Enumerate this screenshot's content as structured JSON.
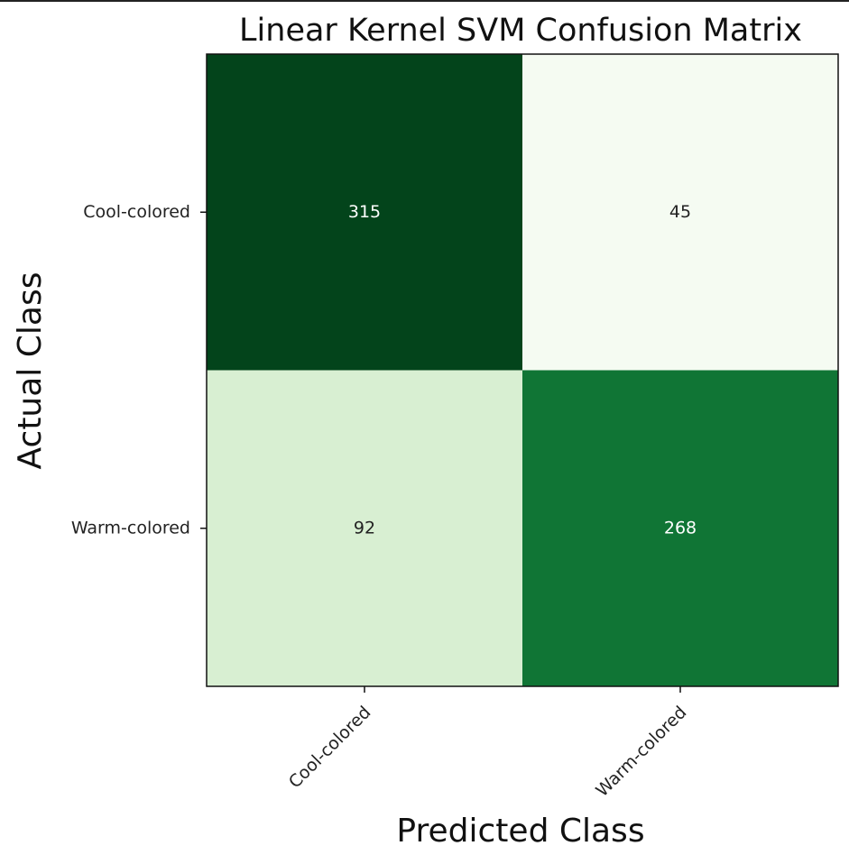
{
  "chart_data": {
    "type": "heatmap",
    "title": "Linear Kernel SVM Confusion Matrix",
    "xlabel": "Predicted Class",
    "ylabel": "Actual Class",
    "x_categories": [
      "Cool-colored",
      "Warm-colored"
    ],
    "y_categories": [
      "Cool-colored",
      "Warm-colored"
    ],
    "values": [
      [
        315,
        45
      ],
      [
        92,
        268
      ]
    ],
    "colormap": "Greens",
    "cell_colors": [
      [
        "#03441b",
        "#f5fbf2"
      ],
      [
        "#d8efd2",
        "#107535"
      ]
    ],
    "text_colors": [
      [
        "#ffffff",
        "#222222"
      ],
      [
        "#222222",
        "#ffffff"
      ]
    ],
    "grid": false
  }
}
